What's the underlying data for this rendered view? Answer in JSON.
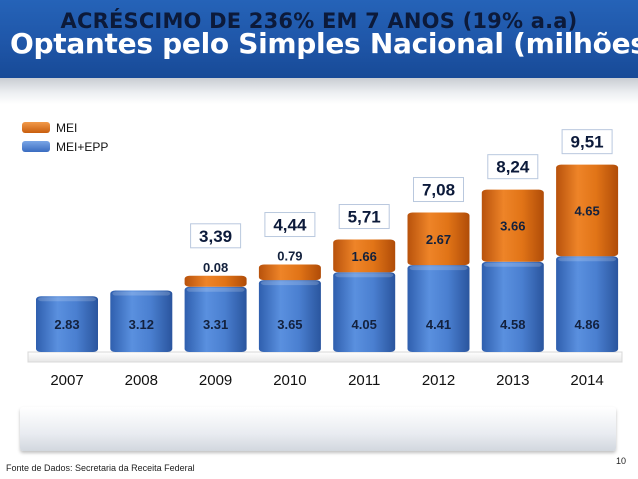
{
  "header": {
    "title": "Optantes pelo Simples Nacional (milhões)"
  },
  "chart_data": {
    "type": "bar",
    "stacked": true,
    "categories": [
      "2007",
      "2008",
      "2009",
      "2010",
      "2011",
      "2012",
      "2013",
      "2014"
    ],
    "series": [
      {
        "name": "MEI+EPP",
        "color": "#4a7fd2",
        "values": [
          2.83,
          3.12,
          3.31,
          3.65,
          4.05,
          4.41,
          4.58,
          4.86
        ],
        "labels": [
          "2.83",
          "3.12",
          "3.31",
          "3.65",
          "4.05",
          "4.41",
          "4.58",
          "4.86"
        ]
      },
      {
        "name": "MEI",
        "color": "#df6e14",
        "values": [
          null,
          null,
          0.08,
          0.79,
          1.66,
          2.67,
          3.66,
          4.65
        ],
        "labels": [
          "",
          "",
          "0.08",
          "0.79",
          "1.66",
          "2.67",
          "3.66",
          "4.65"
        ]
      }
    ],
    "totals": [
      "",
      "",
      "3,39",
      "4,44",
      "5,71",
      "7,08",
      "8,24",
      "9,51"
    ],
    "legend": {
      "position": "top-left",
      "items": [
        "MEI",
        "MEI+EPP"
      ]
    }
  },
  "banner": {
    "text": "ACRÉSCIMO DE 236% EM 7 ANOS (19% a.a)"
  },
  "footer": {
    "source": "Fonte de Dados: Secretaria da Receita Federal",
    "page_number": "10"
  }
}
